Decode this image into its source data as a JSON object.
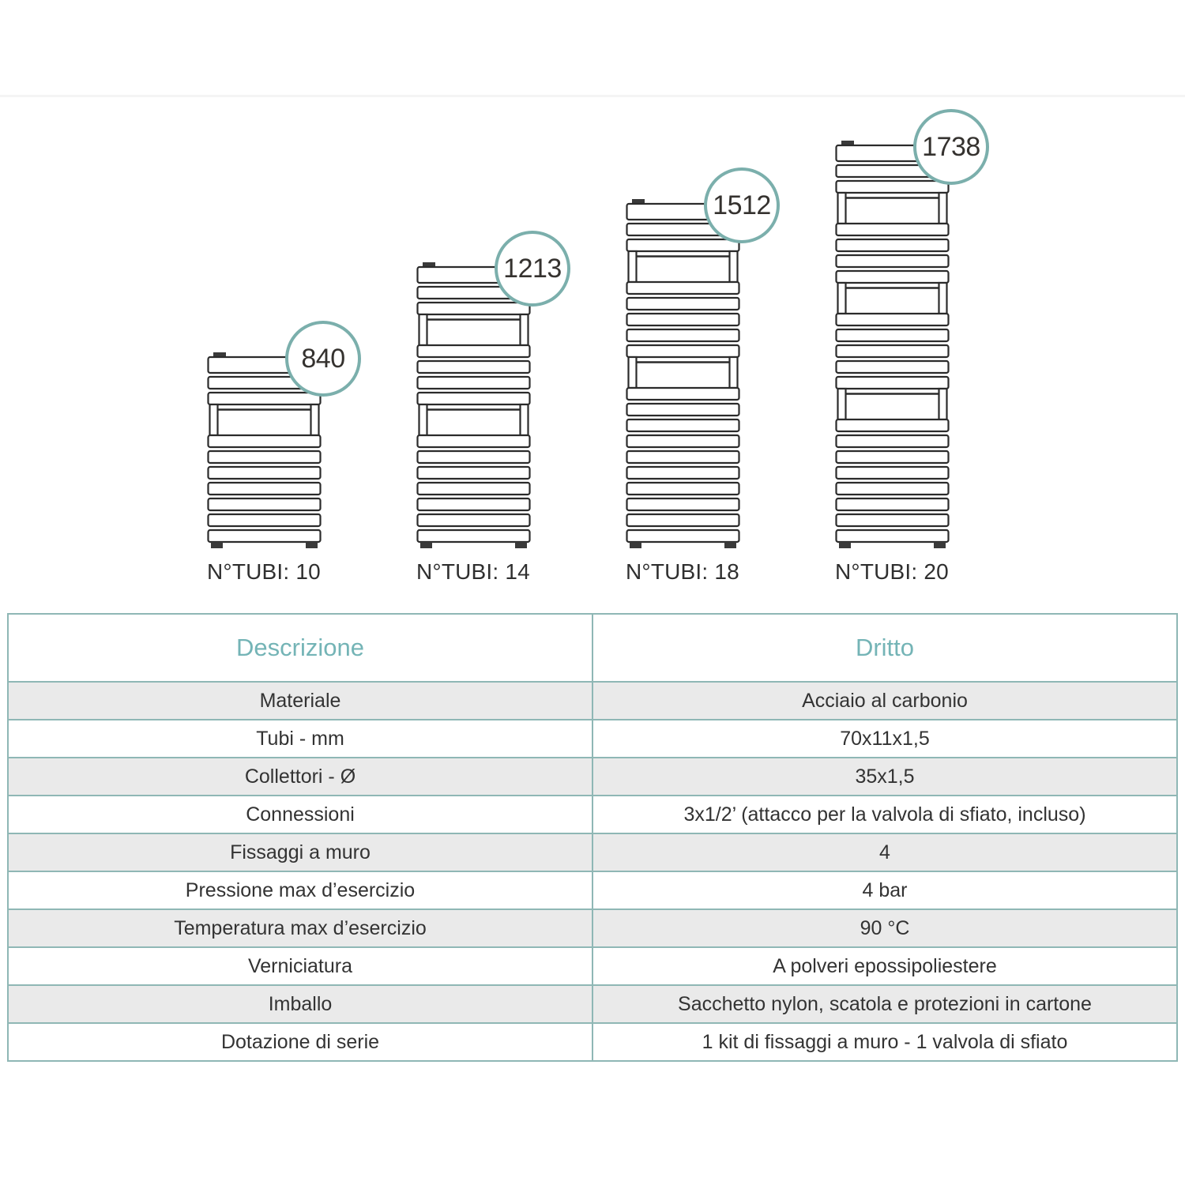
{
  "diagram": {
    "radiators": [
      {
        "height_mm": "840",
        "tubes_label": "N°TUBI: 10",
        "n_tubi": 10,
        "groups": [
          3,
          7
        ]
      },
      {
        "height_mm": "1213",
        "tubes_label": "N°TUBI: 14",
        "n_tubi": 14,
        "groups": [
          3,
          4,
          7
        ]
      },
      {
        "height_mm": "1512",
        "tubes_label": "N°TUBI: 18",
        "n_tubi": 18,
        "groups": [
          3,
          5,
          10
        ]
      },
      {
        "height_mm": "1738",
        "tubes_label": "N°TUBI: 20",
        "n_tubi": 20,
        "groups": [
          3,
          4,
          5,
          8
        ]
      }
    ],
    "colors": {
      "circle_stroke": "#7bafac",
      "line": "#2b2b2b",
      "dark_fill": "#3a3a3a",
      "number_text": "#35322f",
      "label_text": "#2f2f2f"
    }
  },
  "table": {
    "header": {
      "col1": "Descrizione",
      "col2": "Dritto"
    },
    "rows": [
      {
        "label": "Materiale",
        "value": "Acciaio al carbonio"
      },
      {
        "label": "Tubi - mm",
        "value": "70x11x1,5"
      },
      {
        "label": "Collettori - Ø",
        "value": "35x1,5"
      },
      {
        "label": "Connessioni",
        "value": "3x1/2’ (attacco per la valvola di sfiato, incluso)"
      },
      {
        "label": "Fissaggi a muro",
        "value": "4"
      },
      {
        "label": "Pressione max d’esercizio",
        "value": "4 bar"
      },
      {
        "label": "Temperatura max d’esercizio",
        "value": "90 °C"
      },
      {
        "label": "Verniciatura",
        "value": "A polveri epossipoliestere"
      },
      {
        "label": "Imballo",
        "value": "Sacchetto nylon, scatola e protezioni in cartone"
      },
      {
        "label": "Dotazione di serie",
        "value": "1 kit di fissaggi a muro - 1 valvola di sfiato"
      }
    ],
    "colors": {
      "border": "#8fb7b5",
      "header_text": "#74b4b6",
      "row_alt_bg": "#eaeaea",
      "text": "#333333"
    }
  }
}
